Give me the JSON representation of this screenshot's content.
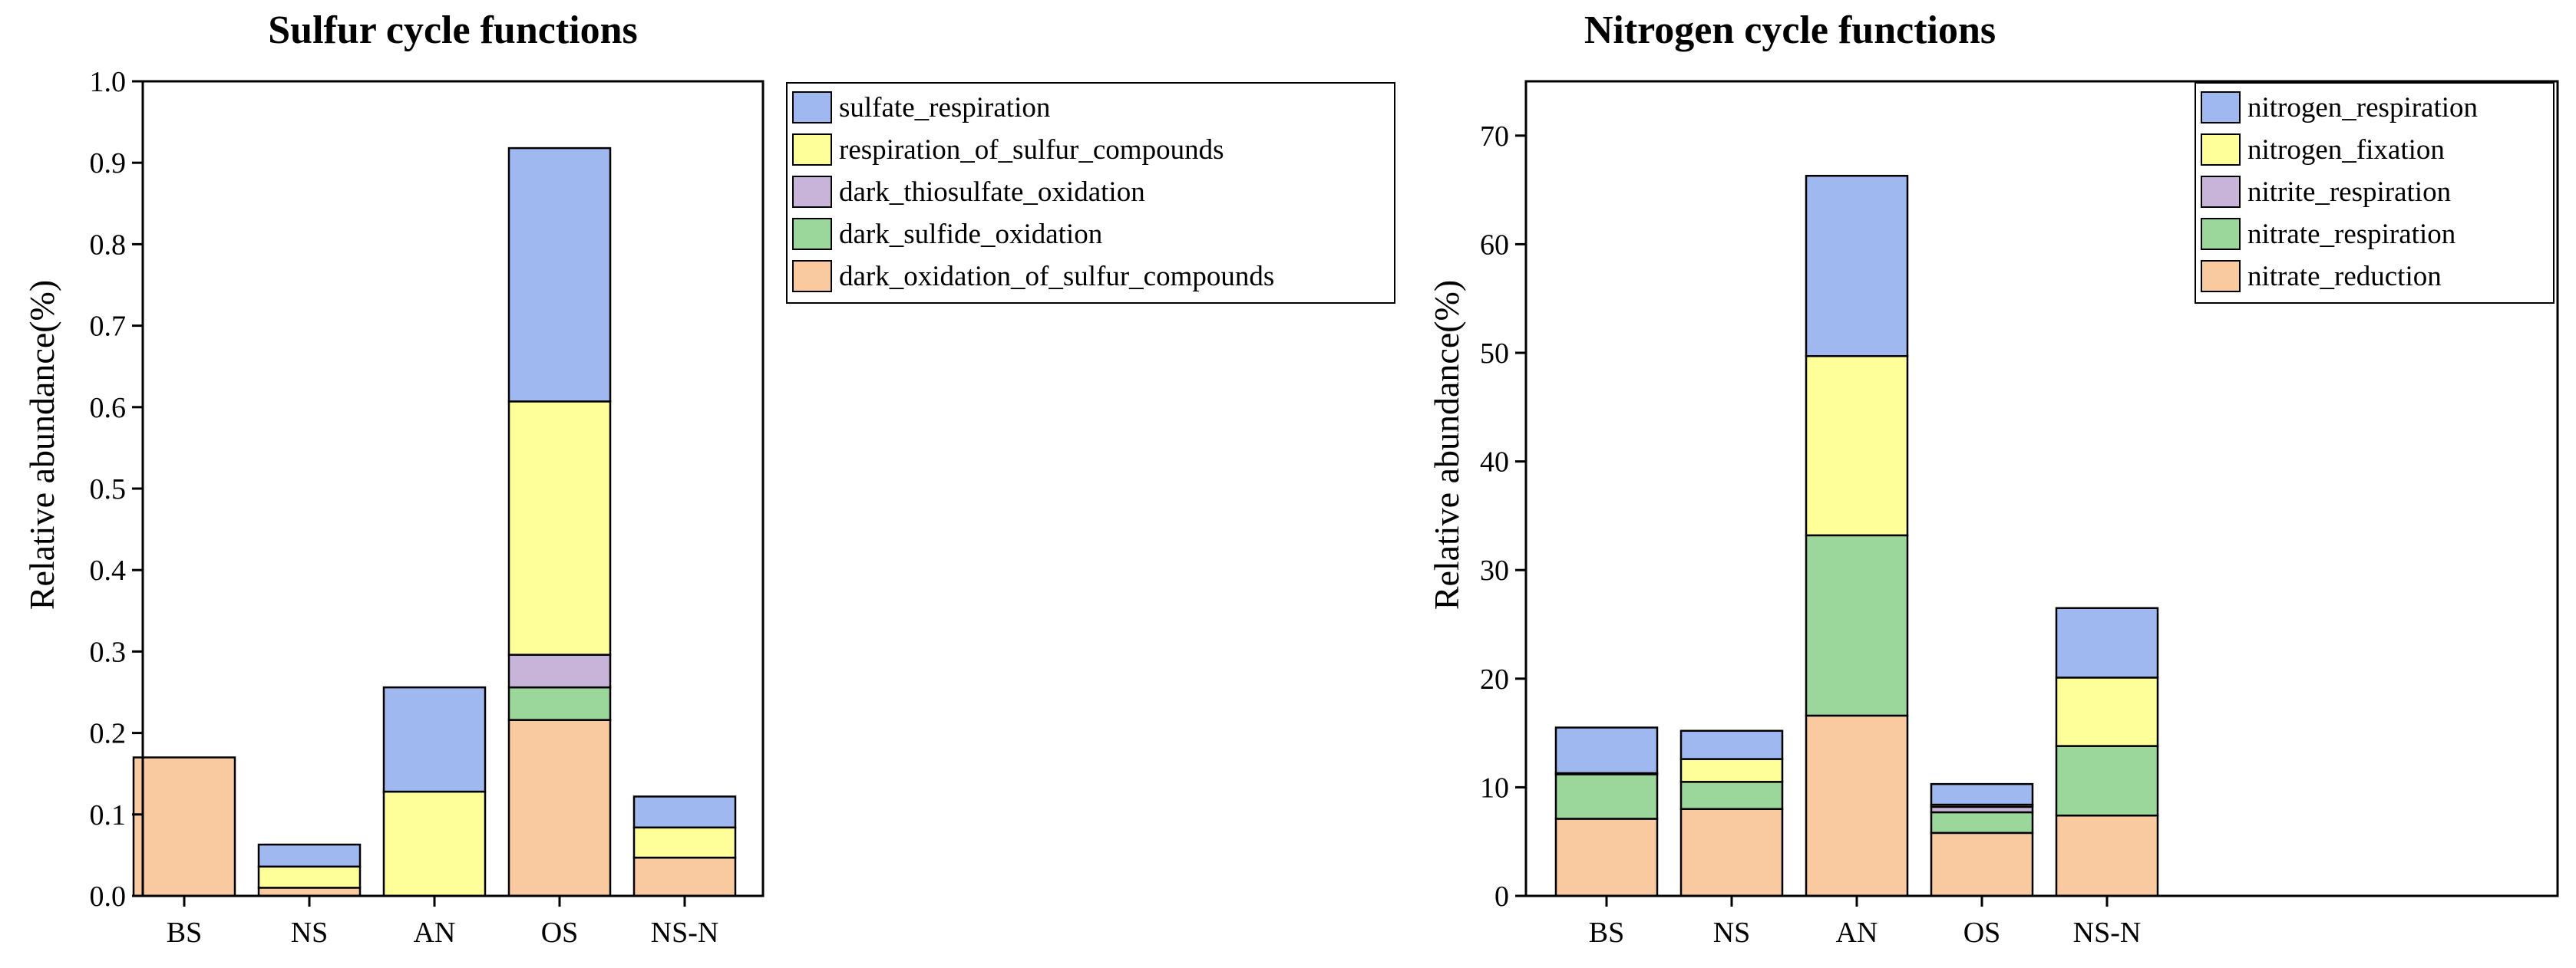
{
  "chart_data": [
    {
      "type": "bar",
      "stacked": true,
      "title": "Sulfur cycle functions",
      "xlabel": "",
      "ylabel": "Relative abundance(%)",
      "categories": [
        "BS",
        "NS",
        "AN",
        "OS",
        "NS-N"
      ],
      "ylim": [
        0,
        1.0
      ],
      "yticks": [
        0.0,
        0.1,
        0.2,
        0.3,
        0.4,
        0.5,
        0.6,
        0.7,
        0.8,
        0.9,
        1.0
      ],
      "ytick_labels": [
        "0.0",
        "0.1",
        "0.2",
        "0.3",
        "0.4",
        "0.5",
        "0.6",
        "0.7",
        "0.8",
        "0.9",
        "1.0"
      ],
      "legend_position": "outside-right-top",
      "series": [
        {
          "name": "dark_oxidation_of_sulfur_compounds",
          "color": "#F9C99F",
          "values": [
            0.17,
            0.01,
            0.0,
            0.216,
            0.047
          ]
        },
        {
          "name": "dark_sulfide_oxidation",
          "color": "#9BD79A",
          "values": [
            0.0,
            0.0,
            0.0,
            0.04,
            0.0
          ]
        },
        {
          "name": "dark_thiosulfate_oxidation",
          "color": "#C8B4D9",
          "values": [
            0.0,
            0.0,
            0.0,
            0.04,
            0.0
          ]
        },
        {
          "name": "respiration_of_sulfur_compounds",
          "color": "#FFFF99",
          "values": [
            0.0,
            0.026,
            0.128,
            0.311,
            0.037
          ]
        },
        {
          "name": "sulfate_respiration",
          "color": "#9FB9F0",
          "values": [
            0.0,
            0.027,
            0.128,
            0.311,
            0.038
          ]
        }
      ],
      "legend_order": [
        "sulfate_respiration",
        "respiration_of_sulfur_compounds",
        "dark_thiosulfate_oxidation",
        "dark_sulfide_oxidation",
        "dark_oxidation_of_sulfur_compounds"
      ]
    },
    {
      "type": "bar",
      "stacked": true,
      "title": "Nitrogen cycle functions",
      "xlabel": "",
      "ylabel": "Relative abundance(%)",
      "categories": [
        "BS",
        "NS",
        "AN",
        "OS",
        "NS-N"
      ],
      "ylim": [
        0,
        75
      ],
      "yticks": [
        0,
        10,
        20,
        30,
        40,
        50,
        60,
        70
      ],
      "ytick_labels": [
        "0",
        "10",
        "20",
        "30",
        "40",
        "50",
        "60",
        "70"
      ],
      "legend_position": "inside-right-top",
      "series": [
        {
          "name": "nitrate_reduction",
          "color": "#F9C99F",
          "values": [
            7.1,
            8.0,
            16.6,
            5.8,
            7.4
          ]
        },
        {
          "name": "nitrate_respiration",
          "color": "#9BD79A",
          "values": [
            4.1,
            2.5,
            16.6,
            1.9,
            6.4
          ]
        },
        {
          "name": "nitrite_respiration",
          "color": "#C8B4D9",
          "values": [
            0.1,
            0.0,
            0.0,
            0.5,
            0.0
          ]
        },
        {
          "name": "nitrogen_fixation",
          "color": "#FFFF99",
          "values": [
            0.0,
            2.1,
            16.5,
            0.2,
            6.3
          ]
        },
        {
          "name": "nitrogen_respiration",
          "color": "#9FB9F0",
          "values": [
            4.2,
            2.6,
            16.6,
            1.9,
            6.4
          ]
        }
      ],
      "legend_order": [
        "nitrogen_respiration",
        "nitrogen_fixation",
        "nitrite_respiration",
        "nitrate_respiration",
        "nitrate_reduction"
      ]
    }
  ]
}
